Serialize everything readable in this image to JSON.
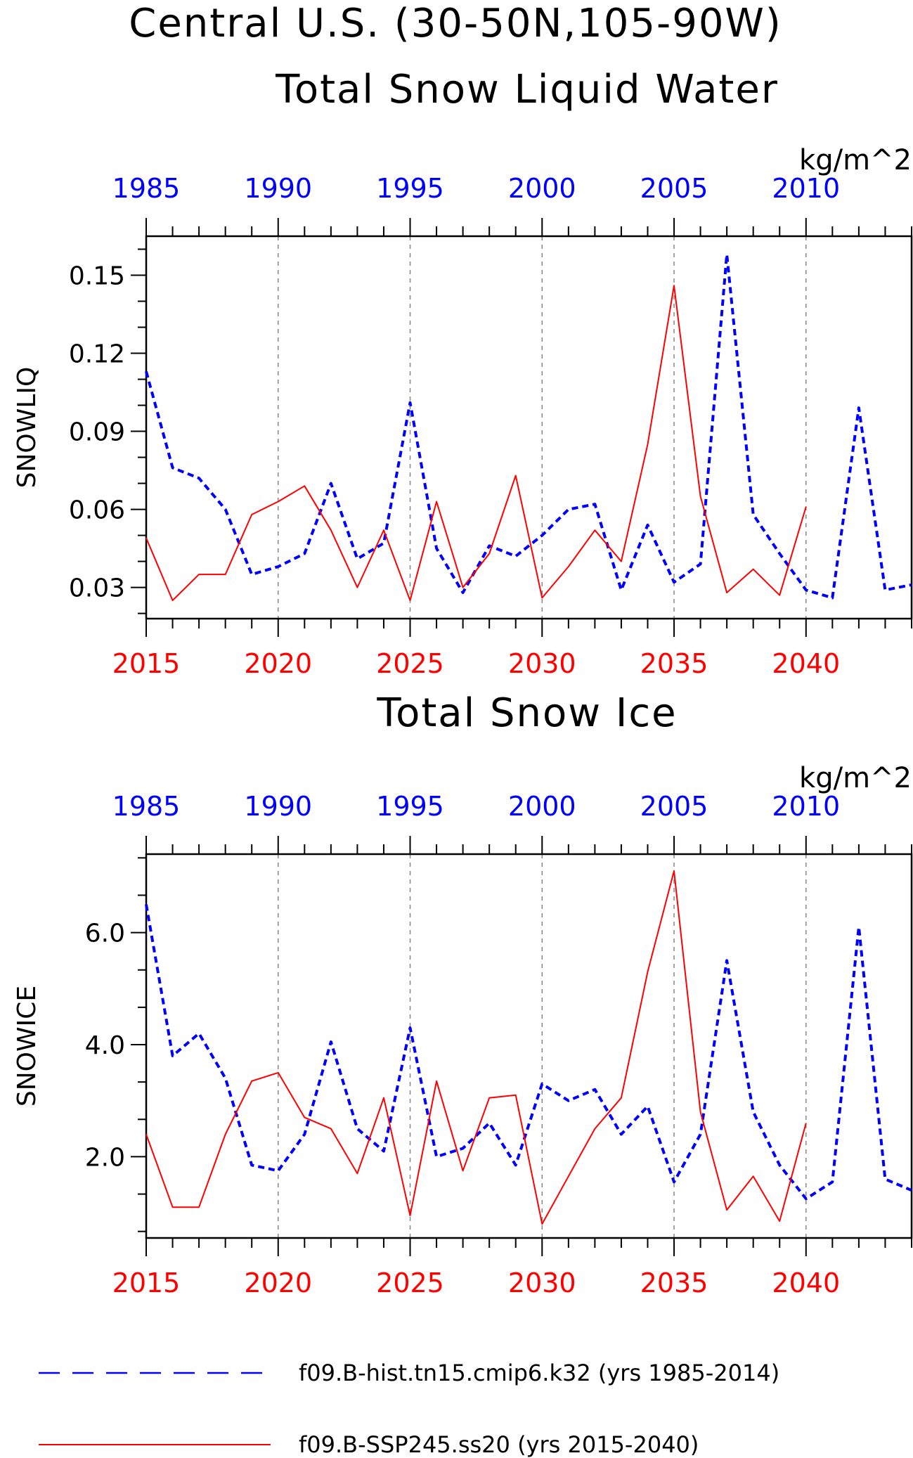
{
  "titles": {
    "main": "Central U.S. (30-50N,105-90W)",
    "panel1": "Total Snow Liquid Water",
    "panel2": "Total Snow Ice"
  },
  "colors": {
    "hist": "#0000ff",
    "ssp": "#ff0000",
    "grid": "#7f7f7f",
    "axis": "#000000"
  },
  "legend": {
    "hist_label": "f09.B-hist.tn15.cmip6.k32 (yrs 1985-2014)",
    "ssp_label": "f09.B-SSP245.ss20 (yrs 2015-2040)"
  },
  "chart_data": [
    {
      "type": "line",
      "title": "Total Snow Liquid Water",
      "ylabel": "SNOWLIQ",
      "units": "kg/m^2",
      "ylim": [
        0.018,
        0.165
      ],
      "yticks": [
        0.03,
        0.06,
        0.09,
        0.12,
        0.15
      ],
      "ytick_labels": [
        "0.03",
        "0.06",
        "0.09",
        "0.12",
        "0.15"
      ],
      "bottom_axis": {
        "xlim": [
          2015,
          2044
        ],
        "ticks": [
          "2015",
          "2020",
          "2025",
          "2030",
          "2035",
          "2040"
        ],
        "color": "red"
      },
      "top_axis": {
        "xlim": [
          1985,
          2014
        ],
        "ticks": [
          "1985",
          "1990",
          "1995",
          "2000",
          "2005",
          "2010"
        ],
        "color": "blue"
      },
      "grid": "vertical dashed at 2020, 2025, 2030, 2035, 2040",
      "series": [
        {
          "name": "f09.B-hist.tn15.cmip6.k32 (yrs 1985-2014)",
          "style": "dashed",
          "color": "#0000ff",
          "x": [
            1985,
            1986,
            1987,
            1988,
            1989,
            1990,
            1991,
            1992,
            1993,
            1994,
            1995,
            1996,
            1997,
            1998,
            1999,
            2000,
            2001,
            2002,
            2003,
            2004,
            2005,
            2006,
            2007,
            2008,
            2009,
            2010,
            2011,
            2012,
            2013,
            2014
          ],
          "values": [
            0.113,
            0.076,
            0.072,
            0.06,
            0.035,
            0.038,
            0.043,
            0.07,
            0.041,
            0.047,
            0.101,
            0.045,
            0.028,
            0.046,
            0.042,
            0.05,
            0.06,
            0.062,
            0.029,
            0.054,
            0.032,
            0.039,
            0.158,
            0.058,
            0.043,
            0.029,
            0.026,
            0.099,
            0.029,
            0.031
          ]
        },
        {
          "name": "f09.B-SSP245.ss20 (yrs 2015-2040)",
          "style": "solid",
          "color": "#ff0000",
          "x": [
            2015,
            2016,
            2017,
            2018,
            2019,
            2020,
            2021,
            2022,
            2023,
            2024,
            2025,
            2026,
            2027,
            2028,
            2029,
            2030,
            2031,
            2032,
            2033,
            2034,
            2035,
            2036,
            2037,
            2038,
            2039,
            2040
          ],
          "values": [
            0.049,
            0.025,
            0.035,
            0.035,
            0.058,
            0.063,
            0.069,
            0.052,
            0.03,
            0.052,
            0.025,
            0.063,
            0.03,
            0.043,
            0.073,
            0.026,
            0.038,
            0.052,
            0.04,
            0.085,
            0.146,
            0.065,
            0.028,
            0.037,
            0.027,
            0.061
          ]
        }
      ]
    },
    {
      "type": "line",
      "title": "Total Snow Ice",
      "ylabel": "SNOWICE",
      "units": "kg/m^2",
      "ylim": [
        0.55,
        7.4
      ],
      "yticks": [
        2.0,
        4.0,
        6.0
      ],
      "ytick_labels": [
        "2.0",
        "4.0",
        "6.0"
      ],
      "bottom_axis": {
        "xlim": [
          2015,
          2044
        ],
        "ticks": [
          "2015",
          "2020",
          "2025",
          "2030",
          "2035",
          "2040"
        ],
        "color": "red"
      },
      "top_axis": {
        "xlim": [
          1985,
          2014
        ],
        "ticks": [
          "1985",
          "1990",
          "1995",
          "2000",
          "2005",
          "2010"
        ],
        "color": "blue"
      },
      "grid": "vertical dashed at 2020, 2025, 2030, 2035, 2040",
      "series": [
        {
          "name": "f09.B-hist.tn15.cmip6.k32 (yrs 1985-2014)",
          "style": "dashed",
          "color": "#0000ff",
          "x": [
            1985,
            1986,
            1987,
            1988,
            1989,
            1990,
            1991,
            1992,
            1993,
            1994,
            1995,
            1996,
            1997,
            1998,
            1999,
            2000,
            2001,
            2002,
            2003,
            2004,
            2005,
            2006,
            2007,
            2008,
            2009,
            2010,
            2011,
            2012,
            2013,
            2014
          ],
          "values": [
            6.5,
            3.8,
            4.2,
            3.4,
            1.85,
            1.75,
            2.4,
            4.05,
            2.5,
            2.1,
            4.3,
            2.0,
            2.15,
            2.6,
            1.85,
            3.3,
            3.0,
            3.2,
            2.4,
            2.9,
            1.55,
            2.4,
            5.5,
            2.8,
            1.85,
            1.25,
            1.55,
            6.1,
            1.6,
            1.4
          ]
        },
        {
          "name": "f09.B-SSP245.ss20 (yrs 2015-2040)",
          "style": "solid",
          "color": "#ff0000",
          "x": [
            2015,
            2016,
            2017,
            2018,
            2019,
            2020,
            2021,
            2022,
            2023,
            2024,
            2025,
            2026,
            2027,
            2028,
            2029,
            2030,
            2031,
            2032,
            2033,
            2034,
            2035,
            2036,
            2037,
            2038,
            2039,
            2040
          ],
          "values": [
            2.4,
            1.1,
            1.1,
            2.4,
            3.35,
            3.5,
            2.7,
            2.5,
            1.7,
            3.05,
            0.95,
            3.35,
            1.75,
            3.05,
            3.1,
            0.8,
            1.65,
            2.5,
            3.05,
            5.3,
            7.1,
            2.8,
            1.05,
            1.65,
            0.85,
            2.6
          ]
        }
      ]
    }
  ]
}
